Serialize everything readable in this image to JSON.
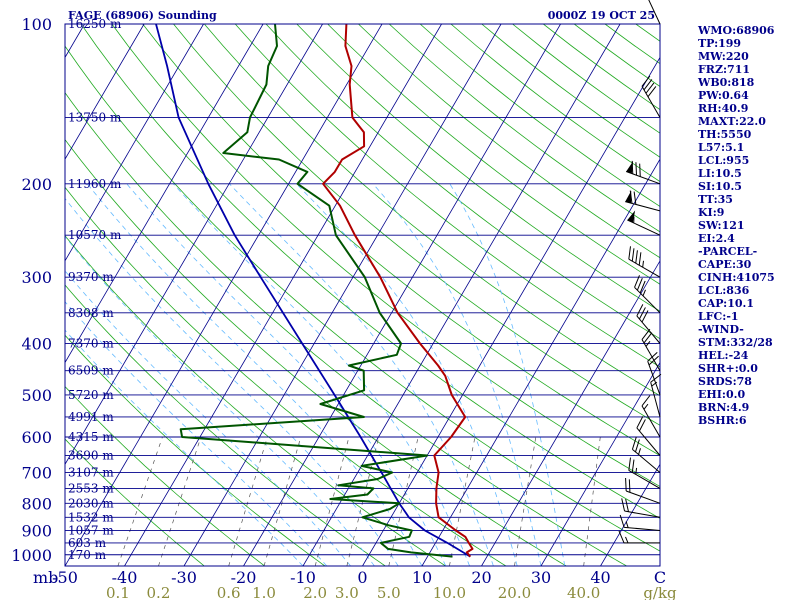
{
  "header": {
    "station": "FAGE (68906) Sounding",
    "time": "0000Z 19 OCT 25"
  },
  "stats": [
    "WMO:68906",
    "TP:199",
    "MW:220",
    "FRZ:711",
    "WB0:818",
    "PW:0.64",
    "RH:40.9",
    "MAXT:22.0",
    "TH:5550",
    "L57:5.1",
    "LCL:955",
    "LI:10.5",
    "SI:10.5",
    "TT:35",
    "KI:9",
    "SW:121",
    "EI:2.4",
    "-PARCEL-",
    "CAPE:30",
    "CINH:41075",
    "LCL:836",
    "CAP:10.1",
    "LFC:-1",
    "-WIND-",
    "STM:332/28",
    "HEL:-24",
    "SHR+:0.0",
    "SRDS:78",
    "EHI:0.0",
    "BRN:4.9",
    "BSHR:6"
  ],
  "colors": {
    "isobar": "#00008b",
    "isotherm": "#00008b",
    "dry_adiabat": "#22aa22",
    "moist_adiabat": "#66bbff",
    "mixing_ratio": "#555555",
    "temperature": "#b00000",
    "dewpoint": "#005500",
    "parcel": "#0000aa",
    "stats_text": "#00008b",
    "mixing_label": "#8b8b3c"
  },
  "chart_data": {
    "type": "skew-t",
    "pressure_axis": {
      "unit": "mb",
      "ticks": [
        100,
        200,
        300,
        400,
        500,
        600,
        700,
        800,
        900,
        1000
      ],
      "range": [
        1050,
        100
      ],
      "scale": "log"
    },
    "temperature_axis": {
      "ticks": [
        -50,
        -40,
        -30,
        -20,
        -10,
        0,
        10,
        20,
        30,
        40,
        "C"
      ],
      "range": [
        -50,
        50
      ]
    },
    "mixing_ratio_axis": {
      "unit": "g/kg",
      "ticks": [
        "0.1",
        "0.2",
        "0.6",
        "1.0",
        "2.0",
        "3.0",
        "5.0",
        "10.0",
        "20.0",
        "40.0"
      ]
    },
    "heights": [
      {
        "p": 100,
        "label": "16250 m"
      },
      {
        "p": 150,
        "label": "13750 m"
      },
      {
        "p": 200,
        "label": "11960 m"
      },
      {
        "p": 250,
        "label": "10570 m"
      },
      {
        "p": 300,
        "label": "9370 m"
      },
      {
        "p": 350,
        "label": "8308 m"
      },
      {
        "p": 400,
        "label": "7370 m"
      },
      {
        "p": 450,
        "label": "6509 m"
      },
      {
        "p": 500,
        "label": "5720 m"
      },
      {
        "p": 550,
        "label": "4991 m"
      },
      {
        "p": 600,
        "label": "4315 m"
      },
      {
        "p": 650,
        "label": "3690 m"
      },
      {
        "p": 700,
        "label": "3107 m"
      },
      {
        "p": 750,
        "label": "2553 m"
      },
      {
        "p": 800,
        "label": "2030 m"
      },
      {
        "p": 850,
        "label": "1532 m"
      },
      {
        "p": 900,
        "label": "1057 m"
      },
      {
        "p": 950,
        "label": "603 m"
      },
      {
        "p": 1000,
        "label": "170 m"
      }
    ],
    "temperature": [
      [
        1008,
        17.2
      ],
      [
        990,
        16.2
      ],
      [
        975,
        16.8
      ],
      [
        950,
        15.6
      ],
      [
        925,
        14.4
      ],
      [
        900,
        12.2
      ],
      [
        850,
        8.0
      ],
      [
        800,
        6.2
      ],
      [
        750,
        4.8
      ],
      [
        700,
        3.6
      ],
      [
        650,
        1.2
      ],
      [
        600,
        2.2
      ],
      [
        550,
        2.6
      ],
      [
        500,
        -1.8
      ],
      [
        460,
        -4.8
      ],
      [
        440,
        -7.0
      ],
      [
        400,
        -12.2
      ],
      [
        350,
        -19.0
      ],
      [
        300,
        -25.4
      ],
      [
        250,
        -33.8
      ],
      [
        220,
        -39.2
      ],
      [
        200,
        -44.2
      ],
      [
        190,
        -43.4
      ],
      [
        180,
        -43.4
      ],
      [
        170,
        -41.0
      ],
      [
        160,
        -42.4
      ],
      [
        150,
        -45.8
      ],
      [
        130,
        -49.5
      ],
      [
        120,
        -51.0
      ],
      [
        110,
        -54.0
      ],
      [
        100,
        -56.0
      ]
    ],
    "dewpoint": [
      [
        1008,
        14.2
      ],
      [
        990,
        6.8
      ],
      [
        975,
        2.6
      ],
      [
        950,
        0.8
      ],
      [
        925,
        5.0
      ],
      [
        900,
        4.8
      ],
      [
        880,
        0.4
      ],
      [
        850,
        -4.8
      ],
      [
        820,
        -1.0
      ],
      [
        800,
        0.0
      ],
      [
        785,
        -12.0
      ],
      [
        770,
        -6.2
      ],
      [
        750,
        -5.8
      ],
      [
        740,
        -12.0
      ],
      [
        720,
        -6.0
      ],
      [
        700,
        -4.2
      ],
      [
        680,
        -10.0
      ],
      [
        650,
        0.0
      ],
      [
        600,
        -43.0
      ],
      [
        580,
        -44.0
      ],
      [
        550,
        -14.4
      ],
      [
        520,
        -23.0
      ],
      [
        490,
        -17.0
      ],
      [
        450,
        -19.0
      ],
      [
        440,
        -22.0
      ],
      [
        420,
        -15.0
      ],
      [
        400,
        -15.4
      ],
      [
        350,
        -22.0
      ],
      [
        300,
        -28.0
      ],
      [
        250,
        -37.0
      ],
      [
        220,
        -41.0
      ],
      [
        200,
        -48.5
      ],
      [
        190,
        -48.0
      ],
      [
        180,
        -54.0
      ],
      [
        175,
        -64.0
      ],
      [
        160,
        -62.0
      ],
      [
        150,
        -63.0
      ],
      [
        130,
        -63.5
      ],
      [
        120,
        -65.0
      ],
      [
        110,
        -65.5
      ],
      [
        100,
        -68.0
      ]
    ],
    "parcel": [
      [
        1008,
        17.2
      ],
      [
        950,
        12.0
      ],
      [
        900,
        7.0
      ],
      [
        850,
        3.0
      ],
      [
        836,
        2.2
      ],
      [
        800,
        0.0
      ],
      [
        700,
        -6.0
      ],
      [
        600,
        -13.0
      ],
      [
        500,
        -21.5
      ],
      [
        400,
        -32.0
      ],
      [
        300,
        -45.5
      ],
      [
        250,
        -54.0
      ],
      [
        200,
        -63.5
      ],
      [
        150,
        -75.0
      ],
      [
        120,
        -82.0
      ],
      [
        100,
        -88.0
      ]
    ],
    "wind_barbs": [
      {
        "p": 100,
        "dir": 335,
        "spd": 20
      },
      {
        "p": 150,
        "dir": 330,
        "spd": 40
      },
      {
        "p": 200,
        "dir": 290,
        "spd": 80
      },
      {
        "p": 225,
        "dir": 285,
        "spd": 70
      },
      {
        "p": 250,
        "dir": 295,
        "spd": 55
      },
      {
        "p": 300,
        "dir": 300,
        "spd": 45
      },
      {
        "p": 350,
        "dir": 315,
        "spd": 35
      },
      {
        "p": 400,
        "dir": 320,
        "spd": 30
      },
      {
        "p": 450,
        "dir": 330,
        "spd": 25
      },
      {
        "p": 500,
        "dir": 340,
        "spd": 20
      },
      {
        "p": 550,
        "dir": 345,
        "spd": 15
      },
      {
        "p": 600,
        "dir": 330,
        "spd": 15
      },
      {
        "p": 650,
        "dir": 320,
        "spd": 20
      },
      {
        "p": 700,
        "dir": 310,
        "spd": 25
      },
      {
        "p": 750,
        "dir": 300,
        "spd": 25
      },
      {
        "p": 800,
        "dir": 290,
        "spd": 20
      },
      {
        "p": 850,
        "dir": 280,
        "spd": 20
      },
      {
        "p": 900,
        "dir": 275,
        "spd": 15
      },
      {
        "p": 950,
        "dir": 270,
        "spd": 15
      }
    ],
    "grid": true
  }
}
